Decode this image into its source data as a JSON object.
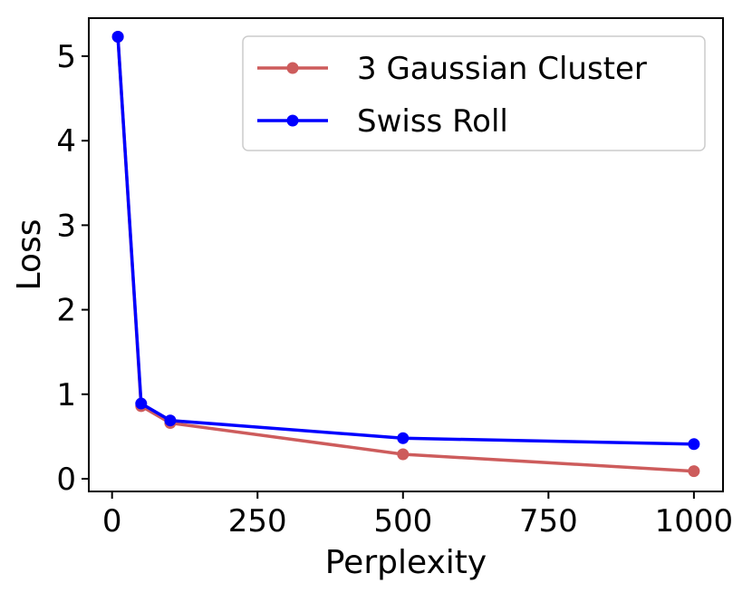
{
  "chart_data": {
    "type": "line",
    "xlabel": "Perplexity",
    "ylabel": "Loss",
    "xlim": [
      -40,
      1050
    ],
    "ylim": [
      -0.15,
      5.45
    ],
    "xticks": [
      0,
      250,
      500,
      750,
      1000
    ],
    "xtick_labels": [
      "0",
      "250",
      "500",
      "750",
      "1000"
    ],
    "yticks": [
      0,
      1,
      2,
      3,
      4,
      5
    ],
    "ytick_labels": [
      "0",
      "1",
      "2",
      "3",
      "4",
      "5"
    ],
    "grid": false,
    "legend_position": "top-right",
    "series": [
      {
        "name": "3 Gaussian Cluster",
        "color": "#cd5c5c",
        "x": [
          10,
          50,
          100,
          500,
          1000
        ],
        "y": [
          5.23,
          0.86,
          0.66,
          0.29,
          0.09
        ]
      },
      {
        "name": "Swiss Roll",
        "color": "#0000ff",
        "x": [
          10,
          50,
          100,
          500,
          1000
        ],
        "y": [
          5.23,
          0.89,
          0.69,
          0.48,
          0.41
        ]
      }
    ]
  }
}
